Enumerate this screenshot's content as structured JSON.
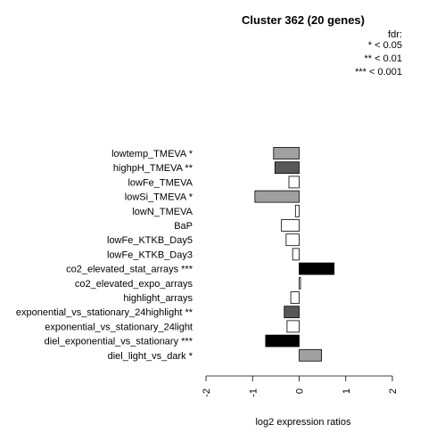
{
  "chart_data": {
    "type": "bar",
    "orientation": "horizontal",
    "title": "Cluster 362 (20 genes)",
    "xlabel": "log2 expression ratios",
    "ylabel": "",
    "xlim": [
      -2,
      2
    ],
    "xticks": [
      "-2",
      "-1",
      "0",
      "1",
      "2"
    ],
    "grid": false,
    "legend": {
      "position": "top-right",
      "title": "fdr:",
      "entries": [
        "* < 0.05",
        "** < 0.01",
        "*** < 0.001"
      ]
    },
    "categories": [
      "lowtemp_TMEVA *",
      "highpH_TMEVA **",
      "lowFe_TMEVA",
      "lowSi_TMEVA *",
      "lowN_TMEVA",
      "BaP",
      "lowFe_KTKB_Day5",
      "lowFe_KTKB_Day3",
      "co2_elevated_stat_arrays ***",
      "co2_elevated_expo_arrays",
      "highlight_arrays",
      "exponential_vs_stationary_24highlight **",
      "exponential_vs_stationary_24light",
      "diel_exponential_vs_stationary ***",
      "diel_light_vs_dark *"
    ],
    "values": [
      -0.55,
      -0.52,
      -0.22,
      -0.95,
      -0.08,
      -0.38,
      -0.28,
      -0.14,
      0.75,
      0.03,
      -0.18,
      -0.32,
      -0.26,
      -0.72,
      0.48
    ],
    "colors": [
      "#a0a0a0",
      "#585858",
      "#ffffff",
      "#a0a0a0",
      "#ffffff",
      "#ffffff",
      "#ffffff",
      "#ffffff",
      "#000000",
      "#ffffff",
      "#ffffff",
      "#585858",
      "#ffffff",
      "#000000",
      "#a0a0a0"
    ]
  }
}
